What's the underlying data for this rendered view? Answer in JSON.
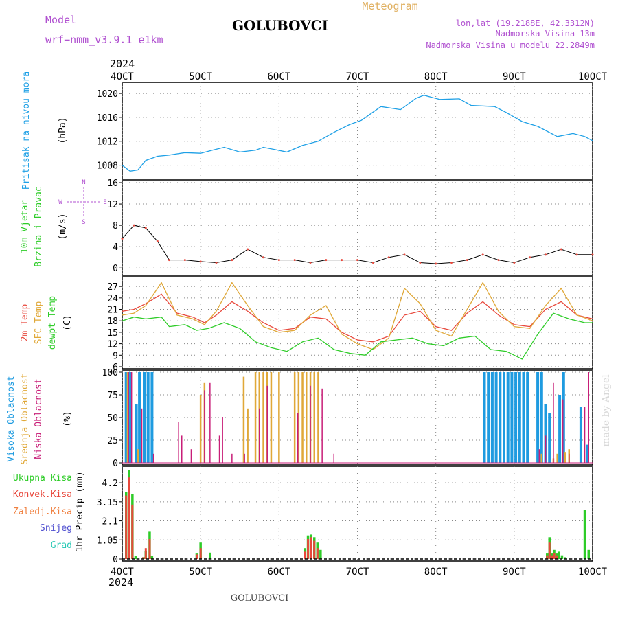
{
  "header": {
    "model_label": "Model",
    "model_name": "wrf−nmm_v3.9.1 e1km",
    "station": "GOLUBOVCI",
    "meteogram": "Meteogram",
    "lonlat": "lon,lat (19.2188E, 42.3312N)",
    "altitude": "Nadmorska Visina 13m",
    "model_altitude": "Nadmorska Visina u modelu 22.2849m",
    "year_top": "2024",
    "year_bottom": "2024",
    "footer_station": "GOLUBOVCI",
    "watermark": "made by Angel"
  },
  "colors": {
    "pressure": "#1ea0e6",
    "t2m": "#e8483c",
    "sfc": "#e0a838",
    "dewpt": "#2ecc28",
    "high_cloud": "#1e9be0",
    "mid_cloud": "#e0a838",
    "low_cloud": "#c81e78",
    "precip_total": "#2ecc28",
    "precip_conv": "#e8483c",
    "freezing": "#f08040",
    "snow": "#5050d0",
    "hail": "#28c8b4",
    "wind_label": "#2ecc28",
    "wind_dir": "#b050d0",
    "axis": "#000000",
    "grid": "#888888",
    "header_text": "#b050d0",
    "meteogram_text": "#e0b060"
  },
  "chart_data": [
    {
      "type": "line",
      "panel": "pressure",
      "ylabel_lines": [
        "Pritisak na nivou mora"
      ],
      "unit": "(hPa)",
      "x_ticks": [
        "4OCT",
        "5OCT",
        "6OCT",
        "7OCT",
        "8OCT",
        "9OCT",
        "10OCT"
      ],
      "x_range": [
        0,
        6
      ],
      "ylim": [
        1006,
        1021.5
      ],
      "y_ticks": [
        1008,
        1012,
        1016,
        1020
      ],
      "grid": true,
      "series": [
        {
          "x": [
            0.0,
            0.1,
            0.2,
            0.3,
            0.45,
            0.6,
            0.8,
            1.0,
            1.15,
            1.3,
            1.5,
            1.7,
            1.8,
            1.95,
            2.1,
            2.3,
            2.5,
            2.7,
            2.9,
            3.05,
            3.3,
            3.55,
            3.75,
            3.85,
            4.05,
            4.3,
            4.45,
            4.75,
            4.9,
            5.1,
            5.3,
            5.55,
            5.75,
            5.9,
            6.0
          ],
          "y": [
            1008.0,
            1007.0,
            1007.2,
            1008.8,
            1009.5,
            1009.7,
            1010.1,
            1010.0,
            1010.5,
            1011.0,
            1010.2,
            1010.5,
            1011.0,
            1010.6,
            1010.2,
            1011.3,
            1012.0,
            1013.5,
            1014.8,
            1015.5,
            1017.8,
            1017.3,
            1019.2,
            1019.7,
            1019.0,
            1019.1,
            1018.0,
            1017.8,
            1016.8,
            1015.3,
            1014.5,
            1012.8,
            1013.3,
            1012.8,
            1012.1
          ]
        }
      ]
    },
    {
      "type": "line",
      "panel": "wind",
      "ylabel_lines": [
        "10m Vjetar",
        "Brzina i Pravac"
      ],
      "unit": "(m/s)",
      "direction_legend": [
        "N",
        "W",
        "E",
        "S"
      ],
      "x_ticks": [
        "4OCT",
        "5OCT",
        "6OCT",
        "7OCT",
        "8OCT",
        "9OCT",
        "10OCT"
      ],
      "x_range": [
        0,
        6
      ],
      "ylim": [
        -1,
        16
      ],
      "y_ticks": [
        0,
        4,
        8,
        12,
        16
      ],
      "grid": true,
      "series": [
        {
          "name": "speed",
          "x": [
            0.0,
            0.15,
            0.3,
            0.45,
            0.6,
            0.8,
            1.0,
            1.2,
            1.4,
            1.6,
            1.8,
            2.0,
            2.2,
            2.4,
            2.6,
            2.8,
            3.0,
            3.2,
            3.4,
            3.6,
            3.8,
            4.0,
            4.2,
            4.4,
            4.6,
            4.8,
            5.0,
            5.2,
            5.4,
            5.6,
            5.8,
            6.0
          ],
          "y": [
            5.5,
            8.0,
            7.5,
            5.0,
            1.5,
            1.5,
            1.2,
            1.0,
            1.5,
            3.5,
            2.0,
            1.5,
            1.5,
            1.0,
            1.5,
            1.5,
            1.5,
            1.0,
            2.0,
            2.5,
            1.0,
            0.8,
            1.0,
            1.5,
            2.5,
            1.5,
            1.0,
            2.0,
            2.5,
            3.5,
            2.5,
            2.5
          ]
        }
      ]
    },
    {
      "type": "line",
      "panel": "temperature",
      "ylabel_lines": [
        "2m Temp",
        "SFC Temp",
        "dewpt Temp"
      ],
      "unit": "(C)",
      "x_ticks": [
        "4OCT",
        "5OCT",
        "6OCT",
        "7OCT",
        "8OCT",
        "9OCT",
        "10OCT"
      ],
      "x_range": [
        0,
        6
      ],
      "ylim": [
        6,
        29
      ],
      "y_ticks": [
        6,
        9,
        12,
        15,
        18,
        21,
        24,
        27
      ],
      "grid": true,
      "series": [
        {
          "name": "2m Temp",
          "x": [
            0.0,
            0.15,
            0.3,
            0.5,
            0.7,
            0.9,
            1.05,
            1.2,
            1.4,
            1.6,
            1.8,
            2.0,
            2.2,
            2.4,
            2.6,
            2.8,
            3.0,
            3.2,
            3.4,
            3.6,
            3.8,
            4.0,
            4.2,
            4.4,
            4.6,
            4.8,
            5.0,
            5.2,
            5.4,
            5.6,
            5.8,
            6.0
          ],
          "y": [
            20.5,
            21.0,
            22.5,
            25.0,
            20.0,
            19.0,
            17.5,
            19.5,
            23.0,
            20.5,
            17.5,
            15.5,
            16.0,
            19.0,
            18.5,
            15.0,
            13.0,
            12.5,
            14.0,
            19.5,
            20.5,
            16.5,
            15.5,
            20.0,
            23.0,
            19.5,
            17.0,
            16.5,
            21.0,
            23.0,
            19.5,
            18.5
          ]
        },
        {
          "name": "SFC Temp",
          "x": [
            0.0,
            0.15,
            0.3,
            0.5,
            0.7,
            0.9,
            1.05,
            1.2,
            1.4,
            1.6,
            1.8,
            2.0,
            2.2,
            2.4,
            2.6,
            2.8,
            3.0,
            3.2,
            3.4,
            3.6,
            3.8,
            4.0,
            4.2,
            4.4,
            4.6,
            4.8,
            5.0,
            5.2,
            5.4,
            5.6,
            5.8,
            6.0
          ],
          "y": [
            19.5,
            20.0,
            22.0,
            28.0,
            19.5,
            18.5,
            17.0,
            20.5,
            28.0,
            22.0,
            16.5,
            15.0,
            15.5,
            19.5,
            22.0,
            14.5,
            12.0,
            10.5,
            13.5,
            26.5,
            22.5,
            15.5,
            14.0,
            21.0,
            28.0,
            20.5,
            16.5,
            16.0,
            22.0,
            26.5,
            19.5,
            18.0
          ]
        },
        {
          "name": "dewpt Temp",
          "x": [
            0.0,
            0.15,
            0.3,
            0.5,
            0.6,
            0.8,
            0.95,
            1.1,
            1.3,
            1.5,
            1.7,
            1.9,
            2.1,
            2.3,
            2.5,
            2.7,
            2.9,
            3.1,
            3.3,
            3.5,
            3.7,
            3.9,
            4.1,
            4.3,
            4.5,
            4.7,
            4.9,
            5.1,
            5.3,
            5.5,
            5.7,
            5.9,
            6.0
          ],
          "y": [
            18.0,
            19.0,
            18.5,
            19.0,
            16.5,
            17.0,
            15.5,
            16.0,
            17.5,
            16.0,
            12.5,
            11.0,
            10.0,
            12.5,
            13.5,
            10.5,
            9.5,
            9.0,
            12.5,
            13.0,
            13.5,
            12.0,
            11.5,
            13.5,
            14.0,
            10.5,
            10.0,
            8.0,
            14.5,
            20.0,
            18.5,
            17.5,
            17.5
          ]
        }
      ]
    },
    {
      "type": "bar",
      "panel": "cloud",
      "ylabel_lines": [
        "Visoka Oblacnost",
        "Srednja Oblacnost",
        "Niska Oblacnost"
      ],
      "unit": "(%)",
      "x_ticks": [
        "4OCT",
        "5OCT",
        "6OCT",
        "7OCT",
        "8OCT",
        "9OCT",
        "10OCT"
      ],
      "x_range": [
        0,
        6
      ],
      "ylim": [
        0,
        100
      ],
      "y_ticks": [
        0,
        25,
        50,
        75,
        100
      ],
      "grid": true,
      "series": [
        {
          "name": "Visoka Oblacnost",
          "x": [
            0.05,
            0.1,
            0.18,
            0.22,
            0.28,
            0.33,
            0.38,
            4.62,
            4.67,
            4.72,
            4.77,
            4.82,
            4.87,
            4.92,
            4.97,
            5.02,
            5.07,
            5.12,
            5.17,
            5.3,
            5.35,
            5.4,
            5.45,
            5.58,
            5.63,
            5.85,
            5.93
          ],
          "y": [
            100,
            100,
            65,
            100,
            100,
            100,
            100,
            100,
            100,
            100,
            100,
            100,
            100,
            100,
            100,
            100,
            100,
            100,
            100,
            100,
            100,
            65,
            55,
            75,
            100,
            62,
            20
          ]
        },
        {
          "name": "Srednja Oblacnost",
          "x": [
            0.07,
            0.2,
            1.0,
            1.05,
            1.55,
            1.6,
            1.7,
            1.75,
            1.8,
            1.85,
            1.9,
            2.0,
            2.2,
            2.25,
            2.3,
            2.35,
            2.4,
            2.45,
            2.5,
            5.35,
            5.5,
            5.55,
            5.65,
            5.7
          ],
          "y": [
            100,
            15,
            75,
            88,
            95,
            60,
            100,
            100,
            100,
            100,
            100,
            100,
            100,
            100,
            100,
            100,
            100,
            100,
            100,
            10,
            5,
            10,
            12,
            15
          ]
        },
        {
          "name": "Niska Oblacnost",
          "x": [
            0.08,
            0.12,
            0.25,
            0.4,
            0.72,
            0.76,
            0.88,
            1.05,
            1.12,
            1.24,
            1.28,
            1.4,
            1.56,
            1.75,
            1.85,
            2.24,
            2.4,
            2.55,
            2.7,
            5.32,
            5.4,
            5.5,
            5.62,
            5.7,
            5.9,
            5.95
          ],
          "y": [
            100,
            100,
            60,
            10,
            45,
            30,
            15,
            80,
            88,
            30,
            50,
            10,
            10,
            60,
            85,
            55,
            85,
            82,
            10,
            15,
            30,
            88,
            70,
            10,
            62,
            100
          ]
        }
      ]
    },
    {
      "type": "bar",
      "panel": "precip",
      "ylabel_lines": [
        "1hr Precip (mm)"
      ],
      "legend": [
        "Ukupna Kisa",
        "Konvek.Kisa",
        "Zaledj.Kisa",
        "Snijeg",
        "Grad"
      ],
      "x_ticks": [
        "4OCT",
        "5OCT",
        "6OCT",
        "7OCT",
        "8OCT",
        "9OCT",
        "10OCT"
      ],
      "x_range": [
        0,
        6
      ],
      "ylim": [
        0,
        5.0
      ],
      "y_ticks": [
        0,
        1.05,
        2.1,
        3.15,
        4.2
      ],
      "grid": true,
      "series": [
        {
          "name": "Ukupna Kisa",
          "x": [
            0.05,
            0.09,
            0.13,
            0.17,
            0.27,
            0.3,
            0.35,
            0.38,
            0.95,
            1.0,
            1.12,
            2.33,
            2.37,
            2.41,
            2.45,
            2.49,
            2.53,
            5.42,
            5.45,
            5.48,
            5.51,
            5.54,
            5.57,
            5.61,
            5.65,
            5.9,
            5.95
          ],
          "y": [
            3.7,
            4.9,
            3.6,
            0.15,
            0.1,
            0.45,
            1.5,
            0.15,
            0.3,
            0.9,
            0.35,
            0.6,
            1.3,
            1.35,
            1.2,
            0.9,
            0.5,
            0.3,
            1.2,
            0.3,
            0.5,
            0.3,
            0.4,
            0.2,
            0.1,
            2.7,
            0.5
          ]
        },
        {
          "name": "Konvek.Kisa",
          "x": [
            0.05,
            0.09,
            0.13,
            0.27,
            0.3,
            0.35,
            0.95,
            1.0,
            2.33,
            2.37,
            2.41,
            2.45,
            2.49,
            5.42,
            5.45,
            5.48,
            5.51,
            5.54
          ],
          "y": [
            3.5,
            4.5,
            3.0,
            0.1,
            0.6,
            1.1,
            0.25,
            0.6,
            0.4,
            1.1,
            1.2,
            1.0,
            0.6,
            0.2,
            0.9,
            0.2,
            0.3,
            0.2
          ]
        }
      ]
    }
  ]
}
